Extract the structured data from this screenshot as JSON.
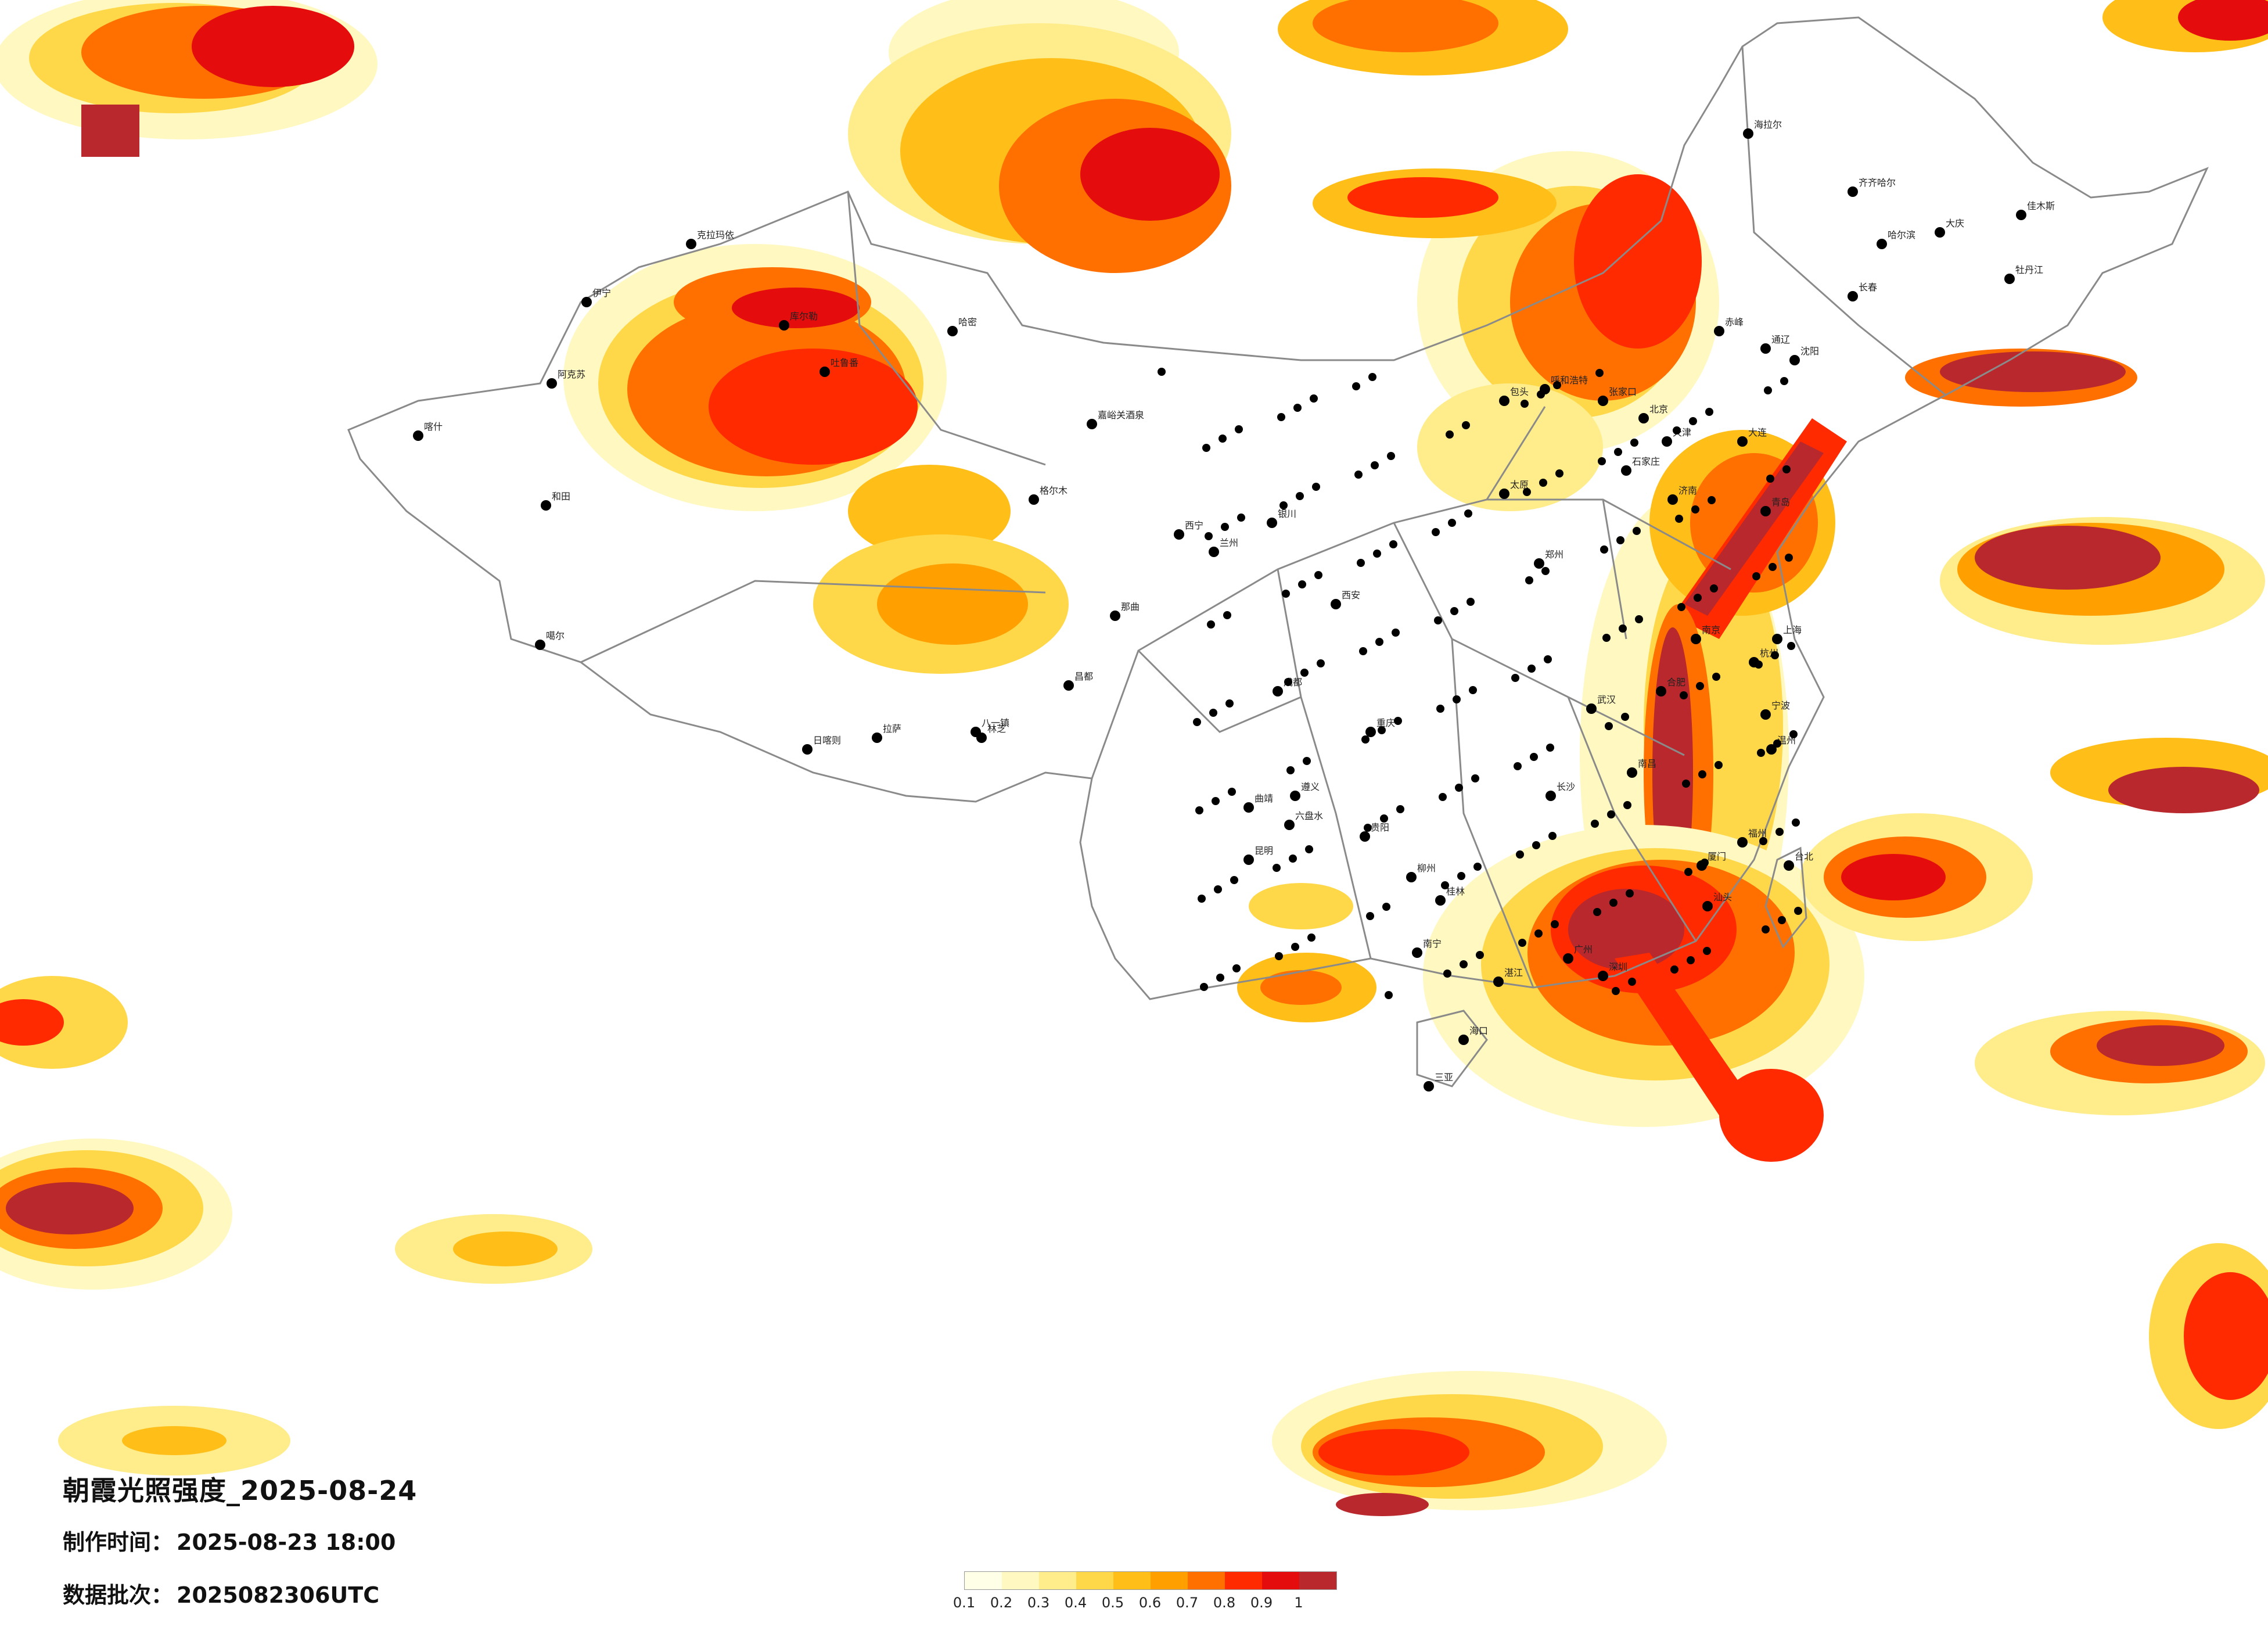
{
  "title": "朝霞光照强度_2025-08-24",
  "produced_label": "制作时间：",
  "produced_value": "2025-08-23 18:00",
  "batch_label": "数据批次：",
  "batch_value": "2025082306UTC",
  "legend": {
    "ticks": [
      "0.1",
      "0.2",
      "0.3",
      "0.4",
      "0.5",
      "0.6",
      "0.7",
      "0.8",
      "0.9",
      "1"
    ],
    "colors": [
      "#ffffe8",
      "#fff8c0",
      "#ffec8a",
      "#ffd84a",
      "#ffbe18",
      "#ffa000",
      "#ff7000",
      "#ff2a00",
      "#e40c0c",
      "#b8282c"
    ]
  },
  "layers": [
    {
      "name": "northwest-top-left",
      "level": 9,
      "intensity": 0.95
    },
    {
      "name": "xinjiang-north",
      "level": 8,
      "intensity": 0.9
    },
    {
      "name": "inner-mongolia-east",
      "level": 8,
      "intensity": 0.9
    },
    {
      "name": "guangdong-coast",
      "level": 9,
      "intensity": 1.0
    },
    {
      "name": "east-china-sea",
      "level": 9,
      "intensity": 1.0
    },
    {
      "name": "pacific-east",
      "level": 8,
      "intensity": 0.9
    },
    {
      "name": "south-china-sea-south",
      "level": 8,
      "intensity": 0.9
    },
    {
      "name": "bay-of-bengal-west",
      "level": 9,
      "intensity": 0.95
    }
  ],
  "cities": [
    "克拉玛依",
    "哈密",
    "阿克苏",
    "和田",
    "喀什",
    "伊宁",
    "库尔勒",
    "吐鲁番",
    "嘉峪关酒泉",
    "格尔木",
    "噶尔",
    "日喀则",
    "拉萨",
    "八一镇",
    "林芝",
    "那曲",
    "昌都",
    "西宁",
    "兰州",
    "银川",
    "呼和浩特",
    "包头",
    "张家口",
    "北京",
    "天津",
    "石家庄",
    "太原",
    "济南",
    "青岛",
    "郑州",
    "西安",
    "成都",
    "重庆",
    "贵阳",
    "昆明",
    "南宁",
    "广州",
    "深圳",
    "海口",
    "三亚",
    "长沙",
    "武汉",
    "南昌",
    "福州",
    "台北",
    "杭州",
    "上海",
    "南京",
    "合肥",
    "长春",
    "哈尔滨",
    "沈阳",
    "大连",
    "齐齐哈尔",
    "海拉尔",
    "佳木斯",
    "牡丹江",
    "通辽",
    "赤峰",
    "大庆",
    "遵义",
    "六盘水",
    "曲靖",
    "桂林",
    "柳州",
    "湛江",
    "厦门",
    "汕头",
    "温州",
    "宁波"
  ]
}
